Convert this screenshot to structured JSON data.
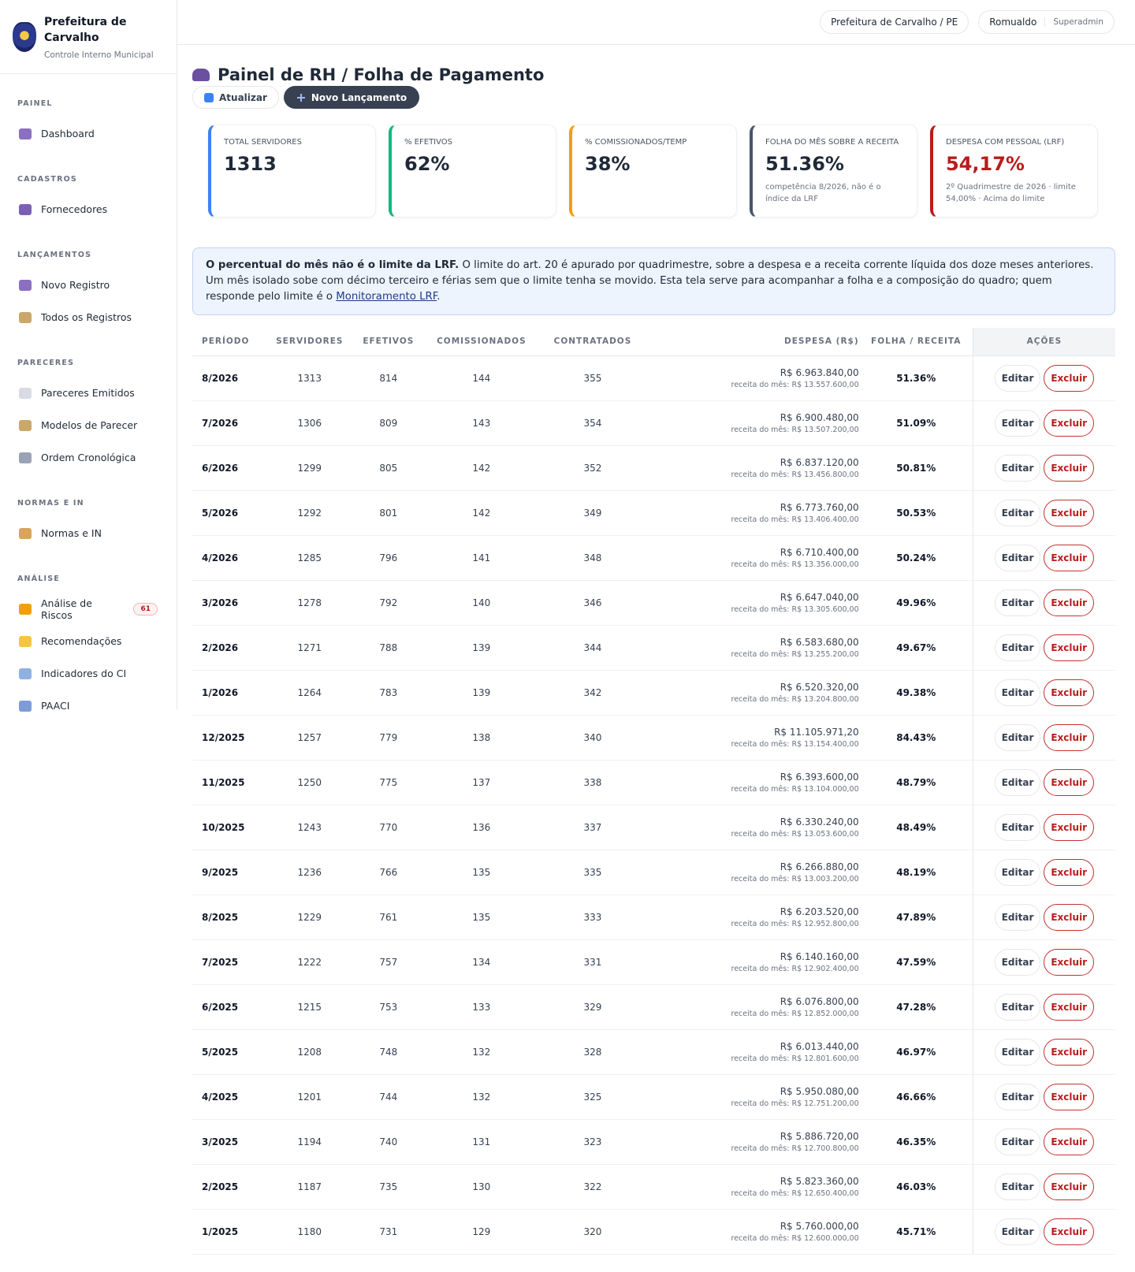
{
  "header": {
    "org_name": "Prefeitura de Carvalho",
    "org_sub": "Controle Interno Municipal",
    "location": "Prefeitura de Carvalho / PE",
    "user": "Romualdo",
    "role": "Superadmin"
  },
  "sidebar": [
    {
      "title": "PAINEL",
      "items": [
        {
          "label": "Dashboard"
        }
      ]
    },
    {
      "title": "CADASTROS",
      "items": [
        {
          "label": "Fornecedores"
        }
      ]
    },
    {
      "title": "LANÇAMENTOS",
      "items": [
        {
          "label": "Novo Registro"
        },
        {
          "label": "Todos os Registros"
        }
      ]
    },
    {
      "title": "PARECERES",
      "items": [
        {
          "label": "Pareceres Emitidos"
        },
        {
          "label": "Modelos de Parecer"
        },
        {
          "label": "Ordem Cronológica"
        }
      ]
    },
    {
      "title": "NORMAS E IN",
      "items": [
        {
          "label": "Normas e IN"
        }
      ]
    },
    {
      "title": "ANÁLISE",
      "items": [
        {
          "label": "Análise de Riscos",
          "badge": 61
        },
        {
          "label": "Recomendações"
        },
        {
          "label": "Indicadores do CI"
        },
        {
          "label": "PAACI"
        }
      ]
    }
  ],
  "page": {
    "title": "Painel de RH / Folha de Pagamento",
    "refresh": "Atualizar",
    "new": "Novo Lançamento"
  },
  "cards": [
    {
      "label": "TOTAL SERVIDORES",
      "value": "1313",
      "color": "#3b82f6"
    },
    {
      "label": "% EFETIVOS",
      "value": "62%",
      "color": "#10b981"
    },
    {
      "label": "% COMISSIONADOS/TEMP",
      "value": "38%",
      "color": "#f59e0b"
    },
    {
      "label": "FOLHA DO MÊS SOBRE A RECEITA",
      "value": "51.36%",
      "note": "competência 8/2026, não é o índice da LRF",
      "color": "#475569"
    },
    {
      "label": "DESPESA COM PESSOAL (LRF)",
      "value": "54,17%",
      "note": "2º Quadrimestre de 2026 · limite 54,00% · Acima do limite",
      "color": "#b91c1c"
    }
  ],
  "notice": {
    "strong": "O percentual do mês não é o limite da LRF.",
    "text": " O limite do art. 20 é apurado por quadrimestre, sobre a despesa e a receita corrente líquida dos doze meses anteriores. Um mês isolado sobe com décimo terceiro e férias sem que o limite tenha se movido. Esta tela serve para acompanhar a folha e a composição do quadro; quem responde pelo limite é o ",
    "link": "Monitoramento LRF",
    "tail": "."
  },
  "table": {
    "headers": [
      "PERÍODO",
      "SERVIDORES",
      "EFETIVOS",
      "COMISSIONADOS",
      "CONTRATADOS",
      "DESPESA (R$)",
      "FOLHA / RECEITA",
      "AÇÕES"
    ],
    "receita_label": "receita do mês:",
    "edit": "Editar",
    "delete": "Excluir",
    "rows": [
      [
        "8/2026",
        1313,
        814,
        144,
        355,
        "R$ 6.963.840,00",
        "R$ 13.557.600,00",
        "51.36%"
      ],
      [
        "7/2026",
        1306,
        809,
        143,
        354,
        "R$ 6.900.480,00",
        "R$ 13.507.200,00",
        "51.09%"
      ],
      [
        "6/2026",
        1299,
        805,
        142,
        352,
        "R$ 6.837.120,00",
        "R$ 13.456.800,00",
        "50.81%"
      ],
      [
        "5/2026",
        1292,
        801,
        142,
        349,
        "R$ 6.773.760,00",
        "R$ 13.406.400,00",
        "50.53%"
      ],
      [
        "4/2026",
        1285,
        796,
        141,
        348,
        "R$ 6.710.400,00",
        "R$ 13.356.000,00",
        "50.24%"
      ],
      [
        "3/2026",
        1278,
        792,
        140,
        346,
        "R$ 6.647.040,00",
        "R$ 13.305.600,00",
        "49.96%"
      ],
      [
        "2/2026",
        1271,
        788,
        139,
        344,
        "R$ 6.583.680,00",
        "R$ 13.255.200,00",
        "49.67%"
      ],
      [
        "1/2026",
        1264,
        783,
        139,
        342,
        "R$ 6.520.320,00",
        "R$ 13.204.800,00",
        "49.38%"
      ],
      [
        "12/2025",
        1257,
        779,
        138,
        340,
        "R$ 11.105.971,20",
        "R$ 13.154.400,00",
        "84.43%"
      ],
      [
        "11/2025",
        1250,
        775,
        137,
        338,
        "R$ 6.393.600,00",
        "R$ 13.104.000,00",
        "48.79%"
      ],
      [
        "10/2025",
        1243,
        770,
        136,
        337,
        "R$ 6.330.240,00",
        "R$ 13.053.600,00",
        "48.49%"
      ],
      [
        "9/2025",
        1236,
        766,
        135,
        335,
        "R$ 6.266.880,00",
        "R$ 13.003.200,00",
        "48.19%"
      ],
      [
        "8/2025",
        1229,
        761,
        135,
        333,
        "R$ 6.203.520,00",
        "R$ 12.952.800,00",
        "47.89%"
      ],
      [
        "7/2025",
        1222,
        757,
        134,
        331,
        "R$ 6.140.160,00",
        "R$ 12.902.400,00",
        "47.59%"
      ],
      [
        "6/2025",
        1215,
        753,
        133,
        329,
        "R$ 6.076.800,00",
        "R$ 12.852.000,00",
        "47.28%"
      ],
      [
        "5/2025",
        1208,
        748,
        132,
        328,
        "R$ 6.013.440,00",
        "R$ 12.801.600,00",
        "46.97%"
      ],
      [
        "4/2025",
        1201,
        744,
        132,
        325,
        "R$ 5.950.080,00",
        "R$ 12.751.200,00",
        "46.66%"
      ],
      [
        "3/2025",
        1194,
        740,
        131,
        323,
        "R$ 5.886.720,00",
        "R$ 12.700.800,00",
        "46.35%"
      ],
      [
        "2/2025",
        1187,
        735,
        130,
        322,
        "R$ 5.823.360,00",
        "R$ 12.650.400,00",
        "46.03%"
      ],
      [
        "1/2025",
        1180,
        731,
        129,
        320,
        "R$ 5.760.000,00",
        "R$ 12.600.000,00",
        "45.71%"
      ]
    ]
  }
}
